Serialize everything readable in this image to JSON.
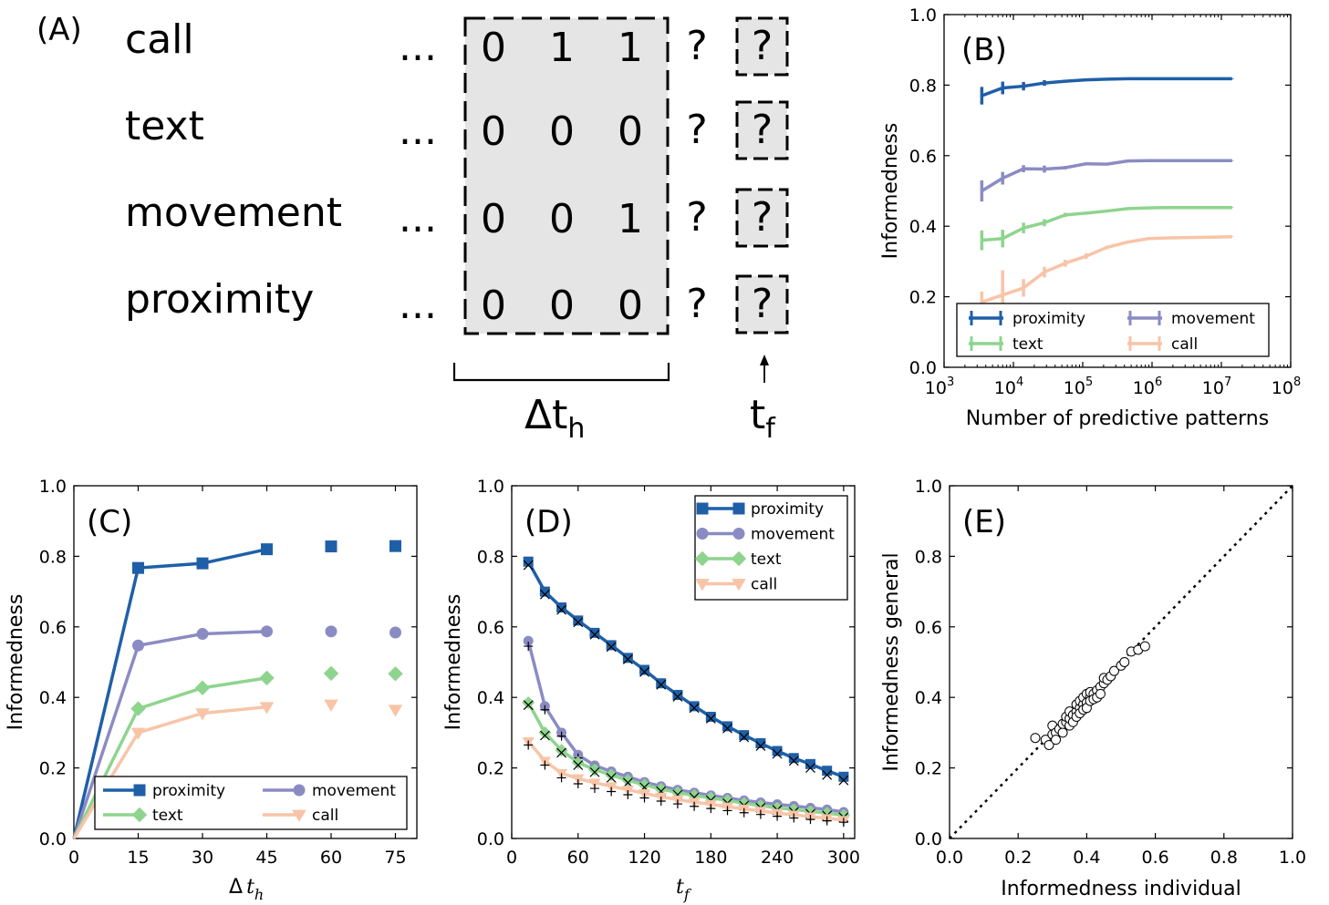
{
  "panel_a": {
    "label": "(A)",
    "rows": [
      {
        "name": "call",
        "values": [
          "0",
          "1",
          "1"
        ]
      },
      {
        "name": "text",
        "values": [
          "0",
          "0",
          "0"
        ]
      },
      {
        "name": "movement",
        "values": [
          "0",
          "0",
          "1"
        ]
      },
      {
        "name": "proximity",
        "values": [
          "0",
          "0",
          "0"
        ]
      }
    ],
    "ellipsis": "...",
    "unknown": "?",
    "history_label": "Δt",
    "history_sub": "h",
    "future_label": "t",
    "future_sub": "f"
  },
  "colors": {
    "proximity": "#1f5fa8",
    "movement": "#8b8bc4",
    "text": "#8ed48e",
    "call": "#f8c4a8"
  },
  "chart_data": [
    {
      "id": "B",
      "label": "(B)",
      "type": "line",
      "xscale": "log",
      "xlabel": "Number of predictive patterns",
      "ylabel": "Informedness",
      "xlim": [
        1000,
        100000000
      ],
      "ylim": [
        0,
        1
      ],
      "xticks": [
        1000,
        10000,
        100000,
        1000000,
        10000000,
        100000000
      ],
      "xticklabels": [
        {
          "base": "10",
          "exp": "3"
        },
        {
          "base": "10",
          "exp": "4"
        },
        {
          "base": "10",
          "exp": "5"
        },
        {
          "base": "10",
          "exp": "6"
        },
        {
          "base": "10",
          "exp": "7"
        },
        {
          "base": "10",
          "exp": "8"
        }
      ],
      "yticks": [
        "0.0",
        "0.2",
        "0.4",
        "0.6",
        "0.8",
        "1.0"
      ],
      "legend": {
        "placement": "bottom",
        "entries": [
          "proximity",
          "movement",
          "text",
          "call"
        ]
      },
      "series": [
        {
          "name": "proximity",
          "color_key": "proximity",
          "x": [
            3500,
            7000,
            14000,
            28000,
            56000,
            112000,
            224000,
            448000,
            896000,
            1790000,
            3580000,
            7170000,
            14300000
          ],
          "y": [
            0.77,
            0.792,
            0.797,
            0.806,
            0.811,
            0.815,
            0.817,
            0.818,
            0.818,
            0.818,
            0.818,
            0.818,
            0.818
          ],
          "err": [
            0.025,
            0.018,
            0.012,
            0.008,
            0.004,
            0.003,
            0.002,
            0.001,
            0.001,
            0.001,
            0.001,
            0.001,
            0.001
          ]
        },
        {
          "name": "movement",
          "color_key": "movement",
          "x": [
            3500,
            7000,
            14000,
            28000,
            56000,
            112000,
            224000,
            448000,
            896000,
            1790000,
            3580000,
            7170000,
            14300000
          ],
          "y": [
            0.5,
            0.536,
            0.563,
            0.562,
            0.566,
            0.577,
            0.576,
            0.585,
            0.586,
            0.586,
            0.586,
            0.586,
            0.586
          ],
          "err": [
            0.03,
            0.018,
            0.01,
            0.01,
            0.005,
            0.003,
            0.002,
            0.001,
            0.001,
            0.001,
            0.001,
            0.001,
            0.001
          ]
        },
        {
          "name": "text",
          "color_key": "text",
          "x": [
            3500,
            7000,
            14000,
            28000,
            56000,
            112000,
            224000,
            448000,
            896000,
            1790000,
            3580000,
            7170000,
            14300000
          ],
          "y": [
            0.36,
            0.365,
            0.395,
            0.41,
            0.432,
            0.437,
            0.443,
            0.45,
            0.452,
            0.453,
            0.453,
            0.453,
            0.453
          ],
          "err": [
            0.028,
            0.025,
            0.015,
            0.01,
            0.006,
            0.004,
            0.003,
            0.002,
            0.001,
            0.001,
            0.001,
            0.001,
            0.001
          ]
        },
        {
          "name": "call",
          "color_key": "call",
          "x": [
            3500,
            7000,
            14000,
            28000,
            56000,
            112000,
            224000,
            448000,
            896000,
            1790000,
            3580000,
            7170000,
            14300000
          ],
          "y": [
            0.185,
            0.205,
            0.225,
            0.27,
            0.295,
            0.315,
            0.34,
            0.355,
            0.365,
            0.367,
            0.368,
            0.369,
            0.37
          ],
          "err": [
            0.03,
            0.07,
            0.025,
            0.015,
            0.01,
            0.008,
            0.005,
            0.003,
            0.002,
            0.001,
            0.001,
            0.001,
            0.001
          ]
        }
      ]
    },
    {
      "id": "C",
      "label": "(C)",
      "type": "line",
      "xlabel_main": "Δ",
      "xlabel_var": "t",
      "xlabel_sub": "h",
      "ylabel": "Informedness",
      "xlim": [
        0,
        80
      ],
      "ylim": [
        0,
        1
      ],
      "xticks": [
        "0",
        "15",
        "30",
        "45",
        "60",
        "75"
      ],
      "yticks": [
        "0.0",
        "0.2",
        "0.4",
        "0.6",
        "0.8",
        "1.0"
      ],
      "legend": {
        "placement": "bottom",
        "entries": [
          "proximity",
          "movement",
          "text",
          "call"
        ]
      },
      "series": [
        {
          "name": "proximity",
          "color_key": "proximity",
          "marker": "square",
          "x": [
            0,
            15,
            30,
            45
          ],
          "y": [
            0,
            0.767,
            0.78,
            0.82
          ],
          "extra_x": [
            60,
            75
          ],
          "extra_y": [
            0.828,
            0.829
          ]
        },
        {
          "name": "movement",
          "color_key": "movement",
          "marker": "circle",
          "x": [
            0,
            15,
            30,
            45
          ],
          "y": [
            0,
            0.547,
            0.58,
            0.587
          ],
          "extra_x": [
            60,
            75
          ],
          "extra_y": [
            0.587,
            0.584
          ]
        },
        {
          "name": "text",
          "color_key": "text",
          "marker": "diamond",
          "x": [
            0,
            15,
            30,
            45
          ],
          "y": [
            0,
            0.368,
            0.427,
            0.455
          ],
          "extra_x": [
            60,
            75
          ],
          "extra_y": [
            0.468,
            0.467
          ]
        },
        {
          "name": "call",
          "color_key": "call",
          "marker": "triangle-down",
          "x": [
            0,
            15,
            30,
            45
          ],
          "y": [
            0,
            0.3,
            0.355,
            0.373
          ],
          "extra_x": [
            60,
            75
          ],
          "extra_y": [
            0.38,
            0.365
          ]
        }
      ]
    },
    {
      "id": "D",
      "label": "(D)",
      "type": "line",
      "xlabel_var": "t",
      "xlabel_sub": "f",
      "ylabel": "Informedness",
      "xlim": [
        0,
        310
      ],
      "ylim": [
        0,
        1
      ],
      "xticks": [
        "0",
        "60",
        "120",
        "180",
        "240",
        "300"
      ],
      "yticks": [
        "0.0",
        "0.2",
        "0.4",
        "0.6",
        "0.8",
        "1.0"
      ],
      "legend": {
        "placement": "top-right",
        "entries": [
          "proximity",
          "movement",
          "text",
          "call"
        ]
      },
      "x": [
        15,
        30,
        45,
        60,
        75,
        90,
        105,
        120,
        135,
        150,
        165,
        180,
        195,
        210,
        225,
        240,
        255,
        270,
        285,
        300
      ],
      "series": [
        {
          "name": "proximity",
          "color_key": "proximity",
          "marker": "square",
          "overlay": "x",
          "y": [
            0.785,
            0.7,
            0.655,
            0.618,
            0.583,
            0.548,
            0.512,
            0.478,
            0.44,
            0.407,
            0.375,
            0.345,
            0.318,
            0.293,
            0.27,
            0.248,
            0.228,
            0.211,
            0.192,
            0.175
          ],
          "overlay_y": [
            0.775,
            0.692,
            0.648,
            0.613,
            0.578,
            0.543,
            0.508,
            0.472,
            0.436,
            0.402,
            0.37,
            0.34,
            0.312,
            0.287,
            0.262,
            0.24,
            0.22,
            0.2,
            0.18,
            0.165
          ]
        },
        {
          "name": "movement",
          "color_key": "movement",
          "marker": "circle",
          "overlay": "plus",
          "y": [
            0.56,
            0.375,
            0.3,
            0.237,
            0.207,
            0.19,
            0.175,
            0.16,
            0.148,
            0.138,
            0.13,
            0.122,
            0.115,
            0.108,
            0.102,
            0.097,
            0.092,
            0.087,
            0.082,
            0.075
          ],
          "overlay_y": [
            0.545,
            0.365,
            0.29,
            0.228,
            0.2,
            0.183,
            0.168,
            0.154,
            0.142,
            0.133,
            0.125,
            0.117,
            0.11,
            0.103,
            0.097,
            0.092,
            0.087,
            0.082,
            0.076,
            0.07
          ]
        },
        {
          "name": "text",
          "color_key": "text",
          "marker": "diamond",
          "overlay": "x",
          "y": [
            0.385,
            0.3,
            0.25,
            0.215,
            0.195,
            0.18,
            0.165,
            0.152,
            0.14,
            0.13,
            0.122,
            0.115,
            0.108,
            0.1,
            0.093,
            0.087,
            0.082,
            0.077,
            0.072,
            0.066
          ],
          "overlay_y": [
            0.378,
            0.292,
            0.243,
            0.208,
            0.188,
            0.172,
            0.158,
            0.145,
            0.134,
            0.124,
            0.116,
            0.108,
            0.1,
            0.093,
            0.087,
            0.081,
            0.075,
            0.07,
            0.065,
            0.06
          ]
        },
        {
          "name": "call",
          "color_key": "call",
          "marker": "triangle-down",
          "overlay": "plus",
          "y": [
            0.275,
            0.22,
            0.185,
            0.17,
            0.158,
            0.148,
            0.138,
            0.128,
            0.118,
            0.11,
            0.103,
            0.097,
            0.09,
            0.084,
            0.078,
            0.072,
            0.067,
            0.062,
            0.057,
            0.052
          ],
          "overlay_y": [
            0.265,
            0.208,
            0.172,
            0.155,
            0.142,
            0.133,
            0.124,
            0.115,
            0.106,
            0.098,
            0.091,
            0.085,
            0.079,
            0.073,
            0.068,
            0.063,
            0.058,
            0.054,
            0.05,
            0.046
          ]
        }
      ]
    },
    {
      "id": "E",
      "label": "(E)",
      "type": "scatter",
      "xlabel": "Informedness individual",
      "ylabel": "Informedness general",
      "xlim": [
        0,
        1
      ],
      "ylim": [
        0,
        1
      ],
      "xticks": [
        "0.0",
        "0.2",
        "0.4",
        "0.6",
        "0.8",
        "1.0"
      ],
      "yticks": [
        "0.0",
        "0.2",
        "0.4",
        "0.6",
        "0.8",
        "1.0"
      ],
      "diagonal": true,
      "points": [
        [
          0.25,
          0.285
        ],
        [
          0.28,
          0.28
        ],
        [
          0.29,
          0.265
        ],
        [
          0.3,
          0.295
        ],
        [
          0.3,
          0.32
        ],
        [
          0.31,
          0.3
        ],
        [
          0.31,
          0.28
        ],
        [
          0.32,
          0.31
        ],
        [
          0.33,
          0.3
        ],
        [
          0.33,
          0.325
        ],
        [
          0.34,
          0.33
        ],
        [
          0.34,
          0.345
        ],
        [
          0.35,
          0.32
        ],
        [
          0.35,
          0.34
        ],
        [
          0.35,
          0.36
        ],
        [
          0.36,
          0.35
        ],
        [
          0.36,
          0.33
        ],
        [
          0.37,
          0.36
        ],
        [
          0.37,
          0.38
        ],
        [
          0.37,
          0.345
        ],
        [
          0.38,
          0.37
        ],
        [
          0.38,
          0.39
        ],
        [
          0.38,
          0.355
        ],
        [
          0.39,
          0.38
        ],
        [
          0.39,
          0.4
        ],
        [
          0.39,
          0.365
        ],
        [
          0.4,
          0.385
        ],
        [
          0.4,
          0.41
        ],
        [
          0.4,
          0.37
        ],
        [
          0.41,
          0.4
        ],
        [
          0.41,
          0.39
        ],
        [
          0.41,
          0.415
        ],
        [
          0.42,
          0.41
        ],
        [
          0.42,
          0.395
        ],
        [
          0.43,
          0.42
        ],
        [
          0.43,
          0.4
        ],
        [
          0.44,
          0.43
        ],
        [
          0.44,
          0.41
        ],
        [
          0.45,
          0.44
        ],
        [
          0.45,
          0.455
        ],
        [
          0.46,
          0.45
        ],
        [
          0.47,
          0.46
        ],
        [
          0.48,
          0.475
        ],
        [
          0.5,
          0.49
        ],
        [
          0.51,
          0.5
        ],
        [
          0.53,
          0.53
        ],
        [
          0.55,
          0.535
        ],
        [
          0.57,
          0.545
        ]
      ]
    }
  ]
}
